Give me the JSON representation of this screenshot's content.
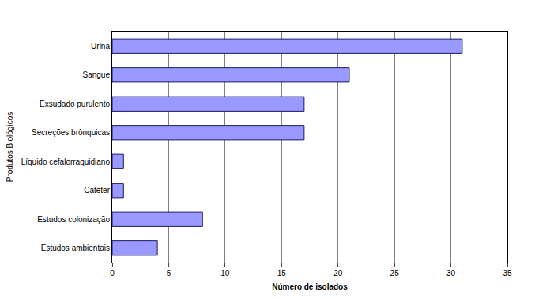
{
  "chart_data": {
    "type": "bar",
    "orientation": "horizontal",
    "categories": [
      "Urina",
      "Sangue",
      "Exsudado purulento",
      "Secreções brônquicas",
      "Líquido cefalorraquidiano",
      "Catéter",
      "Estudos colonização",
      "Estudos ambientais"
    ],
    "values": [
      31,
      21,
      17,
      17,
      1,
      1,
      8,
      4
    ],
    "color": "#9999ff",
    "xlabel": "Número de isolados",
    "ylabel": "Produtos Biológicos",
    "xlim": [
      0,
      35
    ],
    "xticks": [
      0,
      5,
      10,
      15,
      20,
      25,
      30,
      35
    ],
    "grid": true
  }
}
